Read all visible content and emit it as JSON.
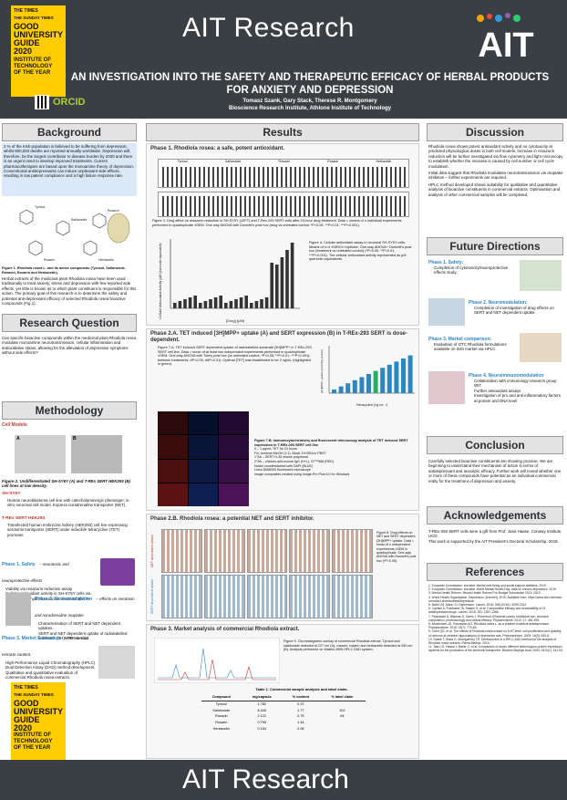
{
  "header": {
    "times_line1": "THE TIMES",
    "times_line2": "THE SUNDAY TIMES",
    "guide_line1": "GOOD",
    "guide_line2": "UNIVERSITY",
    "guide_line3": "GUIDE",
    "guide_year": "2020",
    "inst_line1": "INSTITUTE OF",
    "inst_line2": "TECHNOLOGY",
    "inst_line3": "OF THE YEAR",
    "orcid": "ORCID",
    "ait_text": "AIT Research",
    "logo_text": "AIT"
  },
  "title": {
    "main": "AN INVESTIGATION INTO THE SAFETY AND THERAPEUTIC EFFICACY OF HERBAL PRODUCTS FOR ANXIETY AND DEPRESSION",
    "authors": "Tomasz Szank, Gary Stack, Therese R. Montgomery",
    "institute": "Bioscience Research Institute, Athlone Institute of Technology"
  },
  "background": {
    "heading": "Background",
    "para1": "2 % of the Irish population is believed to be suffering from depression, whilst 800,000 deaths are reported annually worldwide. Depression will, therefore, be the largest contributor to disease burden by 2030 and there is an urgent need to develop improved treatments. Current pharmacotherapies are based upon the monoamine theory of depression. Conventional antidepressants can induce unpleasant side-effects, resulting in low patient compliance and a high failure response rate.",
    "fig_caption": "Figure 1. Rhodiola rosea L. and its active compounds (Tyrosol, Salidroside, Rosavin, Rosarin and Herbacetin).",
    "para2": "Herbal extracts of the medicinal plant Rhodiola rosea have been used traditionally to treat anxiety, stress and depression with few reported side effects, yet little is known as to which plant constituent is responsible for this action. The primary goal of this research is to determine the safety and potential anti-depressant efficacy of selected Rhodiola rosea bioactive compounds (Fig.1).",
    "compounds": [
      "Tyrosol",
      "Salidroside",
      "Rosavin",
      "Rosarin",
      "Herbacetin"
    ]
  },
  "research_question": {
    "heading": "Research Question",
    "text": "Can specific bioactive compounds within the medicinal plant Rhodiola rosea modulate monoamine neurotransmission, cellular inflammation and antioxidative status, allowing for the alleviation of depressive symptoms without side effects?"
  },
  "methodology": {
    "heading": "Methodology",
    "cell_models": "Cell Models",
    "fig2_caption": "Figure 2. Undifferentiated SH-SY5Y (A) and T-REx SERT HEK293 (B) cell lines at low density.",
    "shsy5y_title": "SH-SY5Y",
    "shsy5y_text": "Human neuroblastoma cell line with catecholaminergic phenotype; in vitro neuronal cell model. Express noradrenaline transporter (NET).",
    "trex_title": "T-REx SERT HEK293",
    "trex_text": "Transfected human embryonic kidney (HEK293) cell line expressing serotonin transporter (SERT) under inducible tetracycline (TET) promoter.",
    "phase1_title": "Phase 1. Safety",
    "phase1_sub": "– neurotoxic and neuroprotective effects",
    "phase1_items": [
      "Viability via resazurin reduction assay",
      "Cellular antioxidant activity in SH-SY5Y cells via 2,7'-dichlorodihydrofluorescein diacetate (DCFH-DA) assay."
    ],
    "phase2_title": "Phase 2. Neuromodulation",
    "phase2_sub": "– effects on serotonin and noradrenaline reuptake",
    "phase2_items": [
      "Characterisation of SERT and NET dependent uptakes.",
      "SERT and NET dependent uptake of radiolabelled substrate, [3H]MPP+ in vitro."
    ],
    "phase3_title": "Phase 3. Market Evaluation",
    "phase3_sub": "– commercial extracts content.",
    "phase3_items": [
      "High Performance Liquid Chromatography (HPLC) Dual Detection Assay (DAD) method development.",
      "Qualitative and quantitative evaluation of commercial Rhodiola rosea extracts."
    ],
    "label_a": "A",
    "label_b": "B"
  },
  "results": {
    "heading": "Results",
    "phase1_head": "Phase 1. Rhodiola rosea: a safe, potent antioxidant.",
    "fig3_caption": "Figure 3. Drug effect on resazurin reduction in SH-SY5Y (LEFT) and T-Rex-293 SERT cells after 24-hour drug treatment. Data = means of n individual experiments performed in quadruplicate ±SEM. One way ANOVA with Dunnett's post hoc (drug vs untreated control: *P<0.05, **P<0.01, ***P<0.001).",
    "fig4_caption": "Figure 4. Cellular antioxidant assay in neuronal SH-SY5Y cells. Means of n=4 ±SEM in triplicate. One-way ANOVA+ Dunnett's post hoc (treatment vs untreated control) (*P<0.05, **P<0.01, ***P<0.001). The cellular antioxidant activity represented as μM quercetin equivalents.",
    "fig4_ylabel": "Cellular Antioxidant Activity (μM Quercetin equivalent)",
    "fig4_xlabel": "[Drug] (μM)",
    "plot_groups": [
      "Tyrosol",
      "Salidroside",
      "Rosavin",
      "Rosarin",
      "Herbacetin"
    ],
    "phase2a_head": "Phase 2.A. TET induced [3H]MPP+ uptake (A) and SERT expression (B) in T-REx-293 SERT is dose-dependent.",
    "fig7a_caption": "Figure 7.A. TET induced SERT dependent uptake of radiolabelled substrate [3H]MPP+ in T-REx-293 SERT cell line. Data = mean of at least two independent experiments performed in quadruplicate ±SEM. One-way ANOVA with Tukey post hoc (vs untreated control; *P<0.05, **P<0.01, ***P<0.001); between treatments: #P<0.05, ##P<0.01). Optimal [TET] was established to be 3 ng/mL (highlighted in green).",
    "fig7a_xlabel": "Tetracycline (ng mL⁻¹)",
    "fig7a_ylabel": "[3H]MPP+ uptake (pmol/mg protein)",
    "fig7b_caption": "Figure 7.B. Immunocytochemistry and fluorescent microscopy analysis of TET induced SERT expression in T-REx-293 SERT cell line",
    "fig7b_items": [
      "0 – 1 μg/mL TET for 24 hours",
      "Fix: Acetone:MeOH (1:1), Block 1% BSA in PBST",
      "1°Ab – SERT H-45 mouse polyclonal",
      "2°Ab – chicken-anti-mouse IgG (H+L), CF™568 (RED)",
      "Nuclei counterstained with DAPI (BLUE)",
      "Leica DMi8300 fluorescent microscope",
      "Image composites created using Image-Pro Plus 6.0 for Windows"
    ],
    "phase2b_head": "Phase 2.B. Rhodiola rosea: a potential NET and SERT inhibitor.",
    "fig8_caption": "Figure 8. Drug effects on NET and SERT dependent [3H]MPP+ uptake. Data = mean of n independent experiments ±SEM in quadruplicate. One-way ANOVA with Dunnett's post hoc (*P<0.05).",
    "net_label": "NET dependent uptake",
    "sert_label": "SERT dependent uptake",
    "phase3_head": "Phase 3. Market analysis of commercial Rhodiola extract.",
    "fig9_caption": "Figure 9. Chromatograms overlay of commercial Rhodiola extract. Tyrosol and salidroside detected at 227 nm (A); rosavin, rosarin and herbacetin detected at 250 nm (B). Analysis performed on Waters 2695 HPLC DAD system.",
    "table_caption": "Table 1. Commercial sample analysis and label claim.",
    "table_headers": [
      "Compound",
      "mg/capsule",
      "% content",
      "% label claim"
    ],
    "table_rows": [
      [
        "Tyrosol",
        "1.782",
        "0.37",
        ""
      ],
      [
        "Salidroside",
        "8.440",
        "1.77",
        "102"
      ],
      [
        "Rosavin",
        "2.122",
        "0.75",
        "94"
      ],
      [
        "Rosarin",
        "0.795",
        "1.44",
        ""
      ],
      [
        "Herbacetin",
        "0.154",
        "0.06",
        ""
      ]
    ]
  },
  "discussion": {
    "heading": "Discussion",
    "items": [
      "Rhodiola rosea shows potent antioxidant activity and no cytotoxicity at predicted physiological doses in both cell models. Increase in resazurin reduction will be further investigated via flow cytometry and light microscopy to establish whether the increase is caused by cell number or cell cycle modulation.",
      "Initial data suggest that Rhodiola modulates neurotransmission via reuptake inhibition – further experiments are required.",
      "HPLC method developed shows suitability for qualitative and quantitative analysis of bioactive constituents in commercial extracts. Optimisation and analysis of other commercial samples will be completed."
    ]
  },
  "future": {
    "heading": "Future Directions",
    "phase1_title": "Phase 1. Safety:",
    "phase1_items": [
      "Completion of cytotoxicity/neuroprotective effects study."
    ],
    "phase2_title": "Phase 2. Neuromodulation:",
    "phase2_items": [
      "Completion of investigation of drug effects on SERT and NET dependent uptake."
    ],
    "phase3_title": "Phase 3. Market comparison:",
    "phase3_items": [
      "Evaluation of OTC Rhodiola formulations available on Irish market via HPLC."
    ],
    "phase4_title": "Phase 4. Neuroimmunomodulation",
    "phase4_items": [
      "Collaboration with immunology research group WIT.",
      "Further antioxidant assays",
      "Investigation of pro and anti-inflammatory factors at protein and DNA level"
    ]
  },
  "conclusion": {
    "heading": "Conclusion",
    "text": "Carefully selected bioactive constituents are showing promise. We are beginning to understand their mechanism of action in terms of antidepressant and anxiolytic efficacy. Further work will reveal whether one or more of these compounds have potential as an individual commercial entity for the treatment of depression and anxiety."
  },
  "acknowledgements": {
    "heading": "Acknowledgements",
    "items": [
      "T-REx-293 SERT cells were a gift from Prof. Jana Haase, Conway Institute, UCD.",
      "This work is supported by the AIT President's Doctoral Scholarship, 2019."
    ]
  },
  "references": {
    "heading": "References",
    "items": [
      "1. European Commission: eurostat. Mental well-being and social support statistics. 2019.",
      "2. European Commission: eurostat. World Mental Health Day: data on chronic depression. 2019.",
      "3. Mental Health Reform. Mental Health Reform Pre-Budget Submission 2019. 2019.",
      "4. World Health Organisation. Depression. [Internet]. 2019. Available from: https://www.who.int/news-room/fact-sheets/detail/depression",
      "5. Malhi GS, Mann JJ. Depression. Lancet. 2018; 392(10161): 2299-2312.",
      "6. Cipriani A, Furukawa TA, Salanti G, et al. Comparative efficacy and acceptability of 21 antidepressant drugs. Lancet. 2018; 391: 1357-1366.",
      "7. Panossian A, Wikman G, Sarris J. Rosenroot (Rhodiola rosea): traditional use, chemical composition, pharmacology and clinical efficacy. Phytomedicine. 2010; 17: 481-493.",
      "8. Amsterdam JD, Panossian AG. Rhodiola rosea L. as a putative botanical antidepressant. Phytomedicine. 2016; 23(7): 770-83.",
      "9. Chen QG, et al. The effects of Rhodiola rosea extract on 5-HT level, cell proliferation and quantity of neurons at cerebral hippocampus of depressive rats. Phytomedicine. 2009; 16(9): 830-8.",
      "10. Szank T, Stack G, Montgomery TR. Development of a HPLC-DAD method for the analysis of Rhodiola rosea extracts. Planta Medica. 2019.",
      "11. Tate CG, Haase J, Baker C, et al. Comparison of seven different heterologous protein expression systems for the production of the serotonin transporter. Biochim Biophys Acta. 2003; 1610(1): 141-53."
    ]
  },
  "footer": {
    "ait_text": "AIT Research"
  },
  "colors": {
    "header_bg": "#3a3f44",
    "guide_yellow": "#ffcc00",
    "section_bg": "#e3e3e3",
    "accent_red": "#c0392b"
  }
}
